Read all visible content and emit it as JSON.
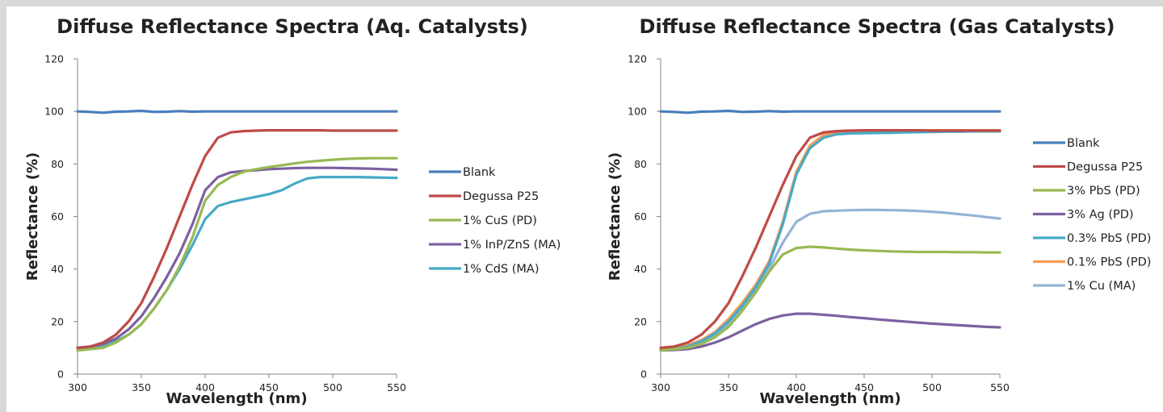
{
  "colors": {
    "blank": "#4a7ebb",
    "degussa": "#be4b48",
    "green": "#98b954",
    "purple": "#7d60a0",
    "teal": "#46aac5",
    "orange": "#f59d56",
    "lightblue": "#95b3d7"
  },
  "chart_data": [
    {
      "type": "line",
      "title": "Diffuse Reflectance Spectra (Aq. Catalysts)",
      "xlabel": "Wavelength (nm)",
      "ylabel": "Reflectance (%)",
      "xlim": [
        300,
        550
      ],
      "ylim": [
        0,
        120
      ],
      "xticks": [
        "300",
        "350",
        "400",
        "450",
        "500",
        "550"
      ],
      "yticks": [
        "0",
        "20",
        "40",
        "60",
        "80",
        "100",
        "120"
      ],
      "grid": false,
      "legend": "right",
      "x": [
        300,
        310,
        320,
        330,
        340,
        350,
        360,
        370,
        380,
        390,
        400,
        410,
        420,
        430,
        440,
        450,
        460,
        470,
        480,
        490,
        500,
        510,
        520,
        530,
        540,
        550
      ],
      "series": [
        {
          "name": "Blank",
          "color_key": "blank",
          "values": [
            100,
            99.8,
            99.5,
            99.9,
            100,
            100.2,
            99.8,
            99.9,
            100.1,
            99.9,
            100,
            100,
            100,
            100,
            100,
            100,
            100,
            100,
            100,
            100,
            100,
            100,
            100,
            100,
            100,
            100
          ]
        },
        {
          "name": "Degussa P25",
          "color_key": "degussa",
          "values": [
            10,
            10.5,
            12,
            15,
            20,
            27,
            37,
            48,
            60,
            72,
            83,
            90,
            92,
            92.5,
            92.7,
            92.8,
            92.8,
            92.8,
            92.8,
            92.8,
            92.7,
            92.7,
            92.7,
            92.7,
            92.7,
            92.7
          ]
        },
        {
          "name": "1% CuS (PD)",
          "color_key": "green",
          "values": [
            9,
            9.5,
            10,
            12,
            15,
            19,
            25,
            32,
            41,
            52,
            66,
            72,
            75,
            77,
            78,
            78.8,
            79.5,
            80.2,
            80.8,
            81.2,
            81.6,
            81.9,
            82.1,
            82.2,
            82.2,
            82.2
          ]
        },
        {
          "name": "1% InP/ZnS (MA)",
          "color_key": "purple",
          "values": [
            10,
            10.5,
            11.5,
            13.5,
            17,
            22,
            29,
            37,
            46,
            57,
            70,
            75,
            76.8,
            77.3,
            77.6,
            78,
            78.2,
            78.4,
            78.5,
            78.5,
            78.5,
            78.4,
            78.3,
            78.2,
            78,
            77.8
          ]
        },
        {
          "name": "1% CdS (MA)",
          "color_key": "teal",
          "values": [
            10,
            10.3,
            11,
            12.5,
            15,
            19,
            25,
            32,
            40,
            49,
            59,
            64,
            65.5,
            66.5,
            67.5,
            68.5,
            70,
            72.5,
            74.5,
            75,
            75,
            75,
            75,
            74.9,
            74.8,
            74.7
          ]
        }
      ]
    },
    {
      "type": "line",
      "title": "Diffuse Reflectance Spectra (Gas Catalysts)",
      "xlabel": "Wavelength (nm)",
      "ylabel": "Reflectance (%)",
      "xlim": [
        300,
        550
      ],
      "ylim": [
        0,
        120
      ],
      "xticks": [
        "300",
        "350",
        "400",
        "450",
        "500",
        "550"
      ],
      "yticks": [
        "0",
        "20",
        "40",
        "60",
        "80",
        "100",
        "120"
      ],
      "grid": false,
      "legend": "right",
      "x": [
        300,
        310,
        320,
        330,
        340,
        350,
        360,
        370,
        380,
        390,
        400,
        410,
        420,
        430,
        440,
        450,
        460,
        470,
        480,
        490,
        500,
        510,
        520,
        530,
        540,
        550
      ],
      "series": [
        {
          "name": "Blank",
          "color_key": "blank",
          "values": [
            100,
            99.8,
            99.5,
            99.9,
            100,
            100.2,
            99.8,
            99.9,
            100.1,
            99.9,
            100,
            100,
            100,
            100,
            100,
            100,
            100,
            100,
            100,
            100,
            100,
            100,
            100,
            100,
            100,
            100
          ]
        },
        {
          "name": "Degussa P25",
          "color_key": "degussa",
          "values": [
            10,
            10.5,
            12,
            15,
            20,
            27,
            37,
            48,
            60,
            72,
            83,
            90,
            92,
            92.5,
            92.7,
            92.8,
            92.8,
            92.8,
            92.8,
            92.8,
            92.7,
            92.7,
            92.7,
            92.7,
            92.7,
            92.7
          ]
        },
        {
          "name": "3% PbS (PD)",
          "color_key": "green",
          "values": [
            9,
            9.5,
            10,
            11.5,
            14,
            18,
            24,
            31,
            39,
            45.5,
            48,
            48.5,
            48.2,
            47.8,
            47.4,
            47.1,
            46.9,
            46.7,
            46.6,
            46.5,
            46.5,
            46.5,
            46.4,
            46.4,
            46.3,
            46.3
          ]
        },
        {
          "name": "3% Ag (PD)",
          "color_key": "purple",
          "values": [
            9,
            9.2,
            9.5,
            10.5,
            12,
            14,
            16.5,
            19,
            21,
            22.3,
            23,
            23,
            22.6,
            22.2,
            21.7,
            21.3,
            20.8,
            20.4,
            20,
            19.6,
            19.2,
            18.9,
            18.6,
            18.3,
            18,
            17.8
          ]
        },
        {
          "name": "0.3% PbS (PD)",
          "color_key": "teal",
          "values": [
            9,
            9.5,
            10.5,
            12.5,
            15.5,
            20,
            26,
            33,
            42,
            57,
            76,
            86,
            90,
            91.3,
            91.6,
            91.7,
            91.8,
            91.9,
            92,
            92.1,
            92.2,
            92.3,
            92.3,
            92.4,
            92.4,
            92.4
          ]
        },
        {
          "name": "0.1% PbS (PD)",
          "color_key": "orange",
          "values": [
            9.5,
            10,
            11,
            13,
            16,
            21,
            27,
            34,
            43,
            58,
            77,
            87,
            91,
            92,
            92.3,
            92.4,
            92.5,
            92.6,
            92.7,
            92.7,
            92.8,
            92.8,
            92.8,
            92.8,
            92.8,
            92.8
          ]
        },
        {
          "name": "1% Cu (MA)",
          "color_key": "lightblue",
          "values": [
            9,
            9.5,
            10.3,
            12,
            15,
            19,
            25,
            32,
            40,
            50,
            58,
            61,
            62,
            62.2,
            62.4,
            62.5,
            62.5,
            62.4,
            62.3,
            62.1,
            61.8,
            61.4,
            60.9,
            60.4,
            59.8,
            59.2
          ]
        }
      ]
    }
  ]
}
